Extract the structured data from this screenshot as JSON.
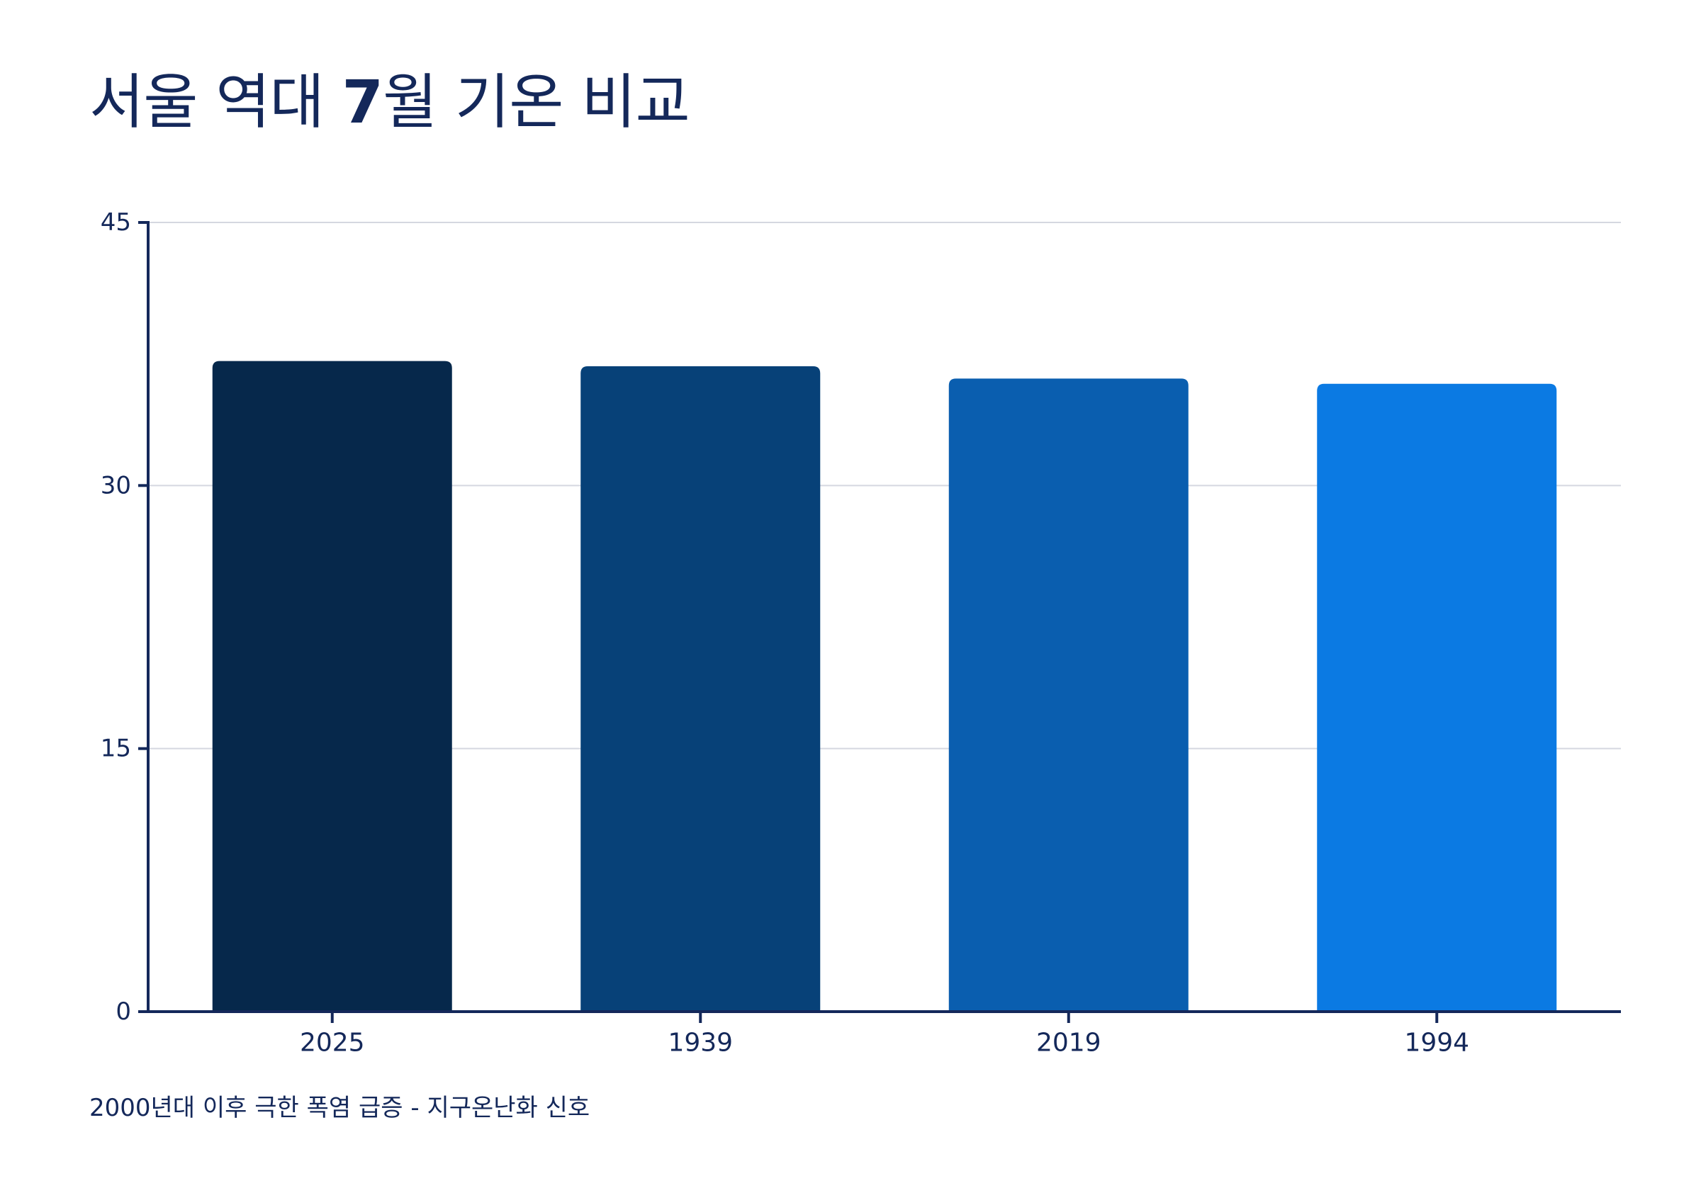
{
  "chart_data": {
    "type": "bar",
    "title_parts": [
      "서울 역대 ",
      "7",
      "월 기온 비교"
    ],
    "title": "서울 역대 7월 기온 비교",
    "categories": [
      "2025",
      "1939",
      "2019",
      "1994"
    ],
    "values": [
      37.1,
      36.8,
      36.1,
      35.8
    ],
    "colors": [
      "#06284b",
      "#074178",
      "#0a5eaf",
      "#0b7ae3"
    ],
    "ylim": [
      0,
      45
    ],
    "yticks": [
      "0",
      "15",
      "30",
      "45"
    ],
    "xlabel": "",
    "ylabel": "",
    "grid": true,
    "legend": "none"
  },
  "footnote": "2000년대 이후 극한 폭염 급증 - 지구온난화 신호"
}
